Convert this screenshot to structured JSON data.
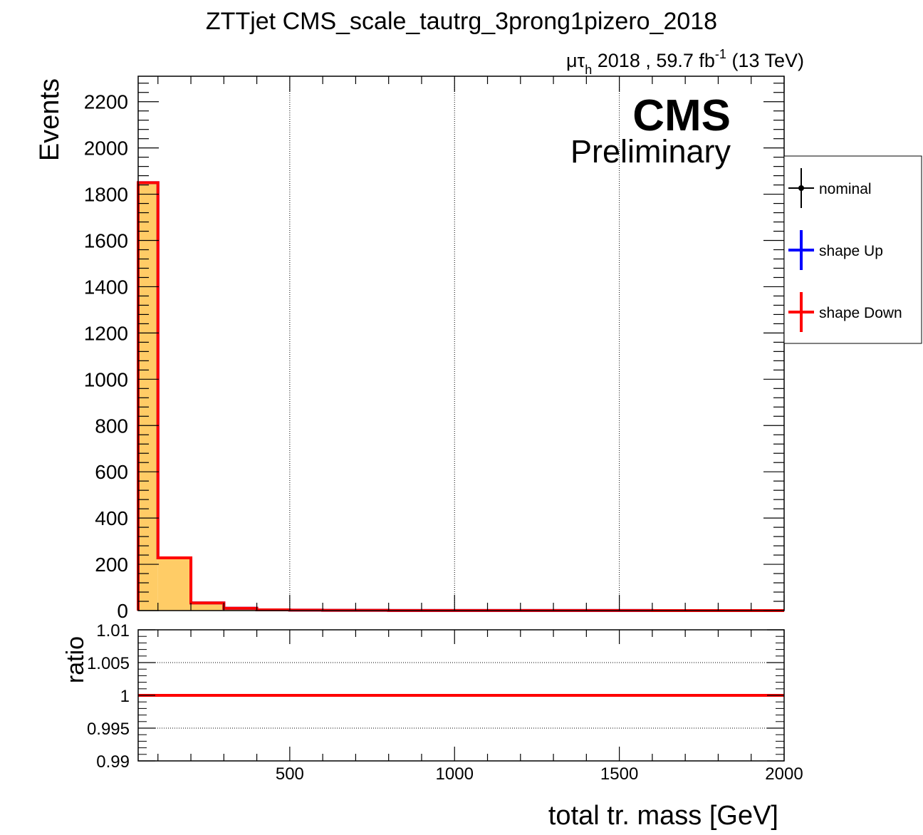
{
  "chart_data": [
    {
      "type": "histogram",
      "title": "ZTTjet CMS_scale_tautrg_3prong1pizero_2018",
      "lumi": {
        "channel_mu": "μτ",
        "channel_sub": "h",
        "text": "2018 , 59.7 fb",
        "sup": "-1",
        "energy": "(13 TeV)"
      },
      "cms_label": "CMS",
      "cms_sublabel": "Preliminary",
      "ylabel": "Events",
      "xlim": [
        40,
        2000
      ],
      "ylim": [
        0,
        2310
      ],
      "y_ticks": [
        0,
        200,
        400,
        600,
        800,
        1000,
        1200,
        1400,
        1600,
        1800,
        2000,
        2200
      ],
      "grid_x": [
        500,
        1000,
        1500
      ],
      "bin_edges": [
        40,
        100,
        200,
        300,
        400,
        500,
        600,
        700,
        800,
        900,
        1000,
        1100,
        1200,
        1300,
        1400,
        1500,
        1600,
        1700,
        1800,
        1900,
        2000
      ],
      "series": [
        {
          "name": "nominal",
          "style": "filled",
          "color": "#ffcc66",
          "values": [
            1850,
            228,
            33,
            10,
            3,
            2,
            1,
            1,
            0.5,
            0.5,
            0.5,
            0.3,
            0.3,
            0.2,
            0.2,
            0.2,
            0.1,
            0.1,
            0.1,
            0.1
          ]
        },
        {
          "name": "shape Up",
          "style": "line",
          "color": "#0000ff",
          "values": [
            1850,
            228,
            33,
            10,
            3,
            2,
            1,
            1,
            0.5,
            0.5,
            0.5,
            0.3,
            0.3,
            0.2,
            0.2,
            0.2,
            0.1,
            0.1,
            0.1,
            0.1
          ]
        },
        {
          "name": "shape Down",
          "style": "line",
          "color": "#ff0000",
          "values": [
            1850,
            228,
            33,
            10,
            3,
            2,
            1,
            1,
            0.5,
            0.5,
            0.5,
            0.3,
            0.3,
            0.2,
            0.2,
            0.2,
            0.1,
            0.1,
            0.1,
            0.1
          ]
        }
      ],
      "legend": {
        "position": "right",
        "entries": [
          {
            "label": "nominal",
            "color": "#000000",
            "marker": true
          },
          {
            "label": "shape Up",
            "color": "#0000ff",
            "marker": false
          },
          {
            "label": "shape Down",
            "color": "#ff0000",
            "marker": false
          }
        ]
      }
    },
    {
      "type": "line",
      "ylabel": "ratio",
      "xlabel": "total tr. mass [GeV]",
      "xlim": [
        40,
        2000
      ],
      "ylim": [
        0.99,
        1.01
      ],
      "y_ticks": [
        0.99,
        0.995,
        1,
        1.005,
        1.01
      ],
      "y_tick_labels": [
        "0.99",
        "0.995",
        "1",
        "1.005",
        "1.01"
      ],
      "x_ticks": [
        500,
        1000,
        1500,
        2000
      ],
      "x_tick_labels": [
        "500",
        "1000",
        "1500",
        "2000"
      ],
      "grid_y": [
        0.995,
        1.005
      ],
      "series": [
        {
          "name": "shape Down",
          "color": "#ff0000",
          "x": [
            40,
            2000
          ],
          "y": [
            1,
            1
          ]
        }
      ]
    }
  ]
}
